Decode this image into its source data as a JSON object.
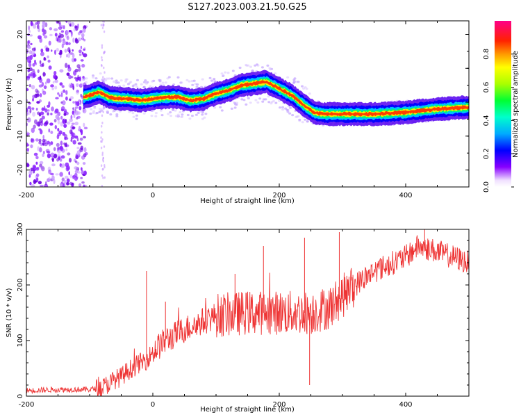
{
  "title": "S127.2023.003.21.50.G25",
  "colors": {
    "snr_line": "#ee3333",
    "axis": "#000000",
    "spectro_bg": "#ffffff"
  },
  "chart_data": [
    {
      "type": "heatmap",
      "title": "S127.2023.003.21.50.G25",
      "xlabel": "Height of straight line (km)",
      "ylabel": "Frequency (Hz)",
      "xlim": [
        -200,
        500
      ],
      "ylim": [
        -25,
        24
      ],
      "x_ticks": [
        -200,
        0,
        200,
        400
      ],
      "y_ticks": [
        -20,
        -10,
        0,
        10,
        20
      ],
      "ridge": {
        "description": "dominant Doppler frequency track of normalized spectral amplitude",
        "x": [
          -120,
          -100,
          -85,
          -70,
          -55,
          -40,
          -20,
          0,
          20,
          40,
          60,
          80,
          100,
          120,
          140,
          160,
          180,
          200,
          220,
          240,
          255,
          270,
          300,
          350,
          400,
          450,
          500
        ],
        "y": [
          1,
          2,
          3,
          1.5,
          1,
          1,
          0.5,
          1,
          1.5,
          1.5,
          0.5,
          1,
          2.5,
          3.5,
          5,
          5.5,
          6,
          4,
          2,
          -1,
          -3,
          -3.5,
          -3.5,
          -3.5,
          -3,
          -2,
          -1.5
        ]
      },
      "colorbar": {
        "label": "Normalized spectral amplitude",
        "ticks": [
          "0.0",
          "0.2",
          "0.4",
          "0.6",
          "0.8"
        ],
        "range": [
          0,
          1
        ]
      }
    },
    {
      "type": "line",
      "xlabel": "Height of straight line (km)",
      "ylabel": "SNR (10 * v/v)",
      "xlim": [
        -200,
        500
      ],
      "ylim": [
        0,
        300
      ],
      "x_ticks": [
        -200,
        0,
        200,
        400
      ],
      "y_ticks": [
        0,
        100,
        200,
        300
      ],
      "series": [
        {
          "trend_x": [
            -200,
            -150,
            -100,
            -80,
            -60,
            -50,
            -40,
            -20,
            -10,
            0,
            20,
            50,
            100,
            150,
            200,
            250,
            280,
            300,
            320,
            350,
            400,
            420,
            450,
            500
          ],
          "trend_y": [
            10,
            12,
            12,
            15,
            30,
            35,
            45,
            60,
            65,
            80,
            100,
            120,
            145,
            150,
            150,
            150,
            160,
            180,
            200,
            225,
            250,
            270,
            260,
            240
          ],
          "spikes": [
            {
              "x": -10,
              "y": 225
            },
            {
              "x": 20,
              "y": 170
            },
            {
              "x": 130,
              "y": 220
            },
            {
              "x": 175,
              "y": 270
            },
            {
              "x": 240,
              "y": 285
            },
            {
              "x": 248,
              "y": 20
            },
            {
              "x": 295,
              "y": 295
            },
            {
              "x": 430,
              "y": 300
            }
          ]
        }
      ]
    }
  ]
}
